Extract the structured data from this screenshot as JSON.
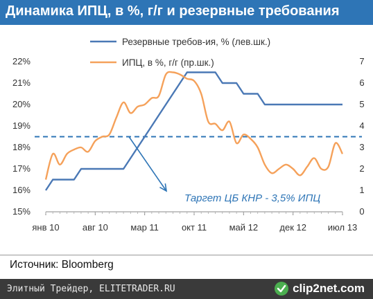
{
  "title": "Динамика ИПЦ, в %, г/г и резервные требования",
  "source": "Источник: Bloomberg",
  "footer": {
    "left": "Элитный Трейдер, ELITETRADER.RU",
    "brand": "clip2net.com",
    "icon": "clip2net-logo-icon"
  },
  "colors": {
    "title_bg": "#2e75b6",
    "reserve": "#4a78b5",
    "cpi": "#f5a15a",
    "target": "#2e75b6",
    "footer_bg": "#3a3a3a"
  },
  "chart_data": {
    "type": "line",
    "x_ticks": [
      "янв 10",
      "авг 10",
      "мар 11",
      "окт 11",
      "май 12",
      "дек 12",
      "июл 13"
    ],
    "y_left": {
      "ticks": [
        "15%",
        "16%",
        "17%",
        "18%",
        "19%",
        "20%",
        "21%",
        "22%"
      ],
      "range": [
        15,
        22
      ]
    },
    "y_right": {
      "ticks": [
        "0",
        "1",
        "2",
        "3",
        "4",
        "5",
        "6",
        "7"
      ],
      "range": [
        0,
        7
      ]
    },
    "x_range": [
      0,
      42
    ],
    "series": [
      {
        "name": "Резервные требов-ия, % (лев.шк.)",
        "axis": "left",
        "points": [
          [
            0,
            16.0
          ],
          [
            1,
            16.5
          ],
          [
            4,
            16.5
          ],
          [
            5,
            17.0
          ],
          [
            11,
            17.0
          ],
          [
            12,
            17.5
          ],
          [
            13,
            18.0
          ],
          [
            14,
            18.5
          ],
          [
            15,
            19.0
          ],
          [
            16,
            19.5
          ],
          [
            17,
            20.0
          ],
          [
            18,
            20.5
          ],
          [
            19,
            21.0
          ],
          [
            20,
            21.5
          ],
          [
            24,
            21.5
          ],
          [
            25,
            21.0
          ],
          [
            27,
            21.0
          ],
          [
            28,
            20.5
          ],
          [
            30,
            20.5
          ],
          [
            31,
            20.0
          ],
          [
            42,
            20.0
          ]
        ]
      },
      {
        "name": "ИПЦ, в %, г/г (пр.шк.)",
        "axis": "right",
        "points": [
          [
            0,
            1.5
          ],
          [
            1,
            2.7
          ],
          [
            2,
            2.2
          ],
          [
            3,
            2.7
          ],
          [
            4,
            2.9
          ],
          [
            5,
            3.0
          ],
          [
            6,
            2.8
          ],
          [
            7,
            3.3
          ],
          [
            8,
            3.5
          ],
          [
            9,
            3.6
          ],
          [
            10,
            4.4
          ],
          [
            11,
            5.1
          ],
          [
            12,
            4.6
          ],
          [
            13,
            4.9
          ],
          [
            14,
            5.0
          ],
          [
            15,
            5.3
          ],
          [
            16,
            5.4
          ],
          [
            17,
            6.4
          ],
          [
            18,
            6.5
          ],
          [
            19,
            6.4
          ],
          [
            20,
            6.2
          ],
          [
            21,
            6.1
          ],
          [
            22,
            5.5
          ],
          [
            23,
            4.2
          ],
          [
            24,
            4.1
          ],
          [
            25,
            3.8
          ],
          [
            26,
            4.2
          ],
          [
            27,
            3.2
          ],
          [
            28,
            3.6
          ],
          [
            29,
            3.4
          ],
          [
            30,
            3.0
          ],
          [
            31,
            2.2
          ],
          [
            32,
            1.8
          ],
          [
            33,
            2.0
          ],
          [
            34,
            2.2
          ],
          [
            35,
            2.0
          ],
          [
            36,
            1.7
          ],
          [
            37,
            2.1
          ],
          [
            38,
            2.5
          ],
          [
            39,
            2.0
          ],
          [
            40,
            2.1
          ],
          [
            41,
            3.2
          ],
          [
            42,
            2.7
          ]
        ]
      }
    ],
    "target_line": {
      "value_left_axis": 18.5,
      "value_right_axis": 3.5
    },
    "annotation": "Таргет ЦБ КНР - 3,5% ИПЦ",
    "legend_position": "top"
  }
}
